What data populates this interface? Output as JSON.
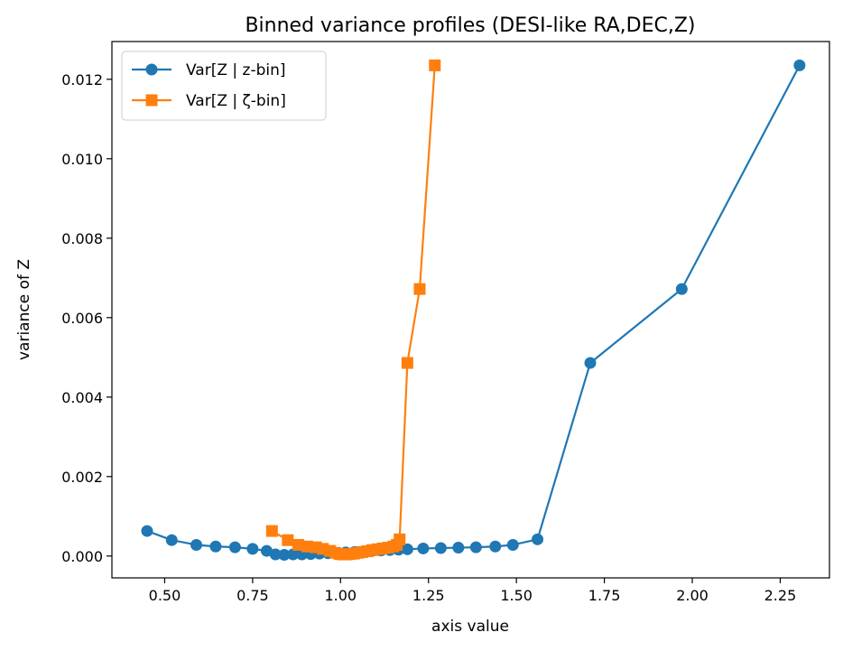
{
  "chart_data": {
    "type": "line",
    "title": "Binned variance profiles (DESI-like RA,DEC,Z)",
    "xlabel": "axis value",
    "ylabel": "variance of Z",
    "xlim": [
      0.35,
      2.39
    ],
    "ylim": [
      -0.00055,
      0.01295
    ],
    "x_ticks": [
      0.5,
      0.75,
      1.0,
      1.25,
      1.5,
      1.75,
      2.0,
      2.25
    ],
    "x_tick_labels": [
      "0.50",
      "0.75",
      "1.00",
      "1.25",
      "1.50",
      "1.75",
      "2.00",
      "2.25"
    ],
    "y_ticks": [
      0.0,
      0.002,
      0.004,
      0.006,
      0.008,
      0.01,
      0.012
    ],
    "y_tick_labels": [
      "0.000",
      "0.002",
      "0.004",
      "0.006",
      "0.008",
      "0.010",
      "0.012"
    ],
    "grid": false,
    "legend_position": "top-left",
    "series": [
      {
        "name": "Var[Z | z-bin]",
        "marker": "circle",
        "color": "#1f77b4",
        "points": [
          [
            0.45,
            0.00063
          ],
          [
            0.52,
            0.0004
          ],
          [
            0.59,
            0.00028
          ],
          [
            0.645,
            0.00024
          ],
          [
            0.7,
            0.00022
          ],
          [
            0.75,
            0.00018
          ],
          [
            0.79,
            0.00013
          ],
          [
            0.815,
            4e-05
          ],
          [
            0.84,
            3e-05
          ],
          [
            0.865,
            4e-05
          ],
          [
            0.89,
            4e-05
          ],
          [
            0.915,
            5e-05
          ],
          [
            0.94,
            6e-05
          ],
          [
            0.965,
            7e-05
          ],
          [
            0.99,
            8e-05
          ],
          [
            1.015,
            9e-05
          ],
          [
            1.04,
            0.0001
          ],
          [
            1.065,
            0.00011
          ],
          [
            1.09,
            0.00013
          ],
          [
            1.115,
            0.00014
          ],
          [
            1.14,
            0.00015
          ],
          [
            1.165,
            0.00016
          ],
          [
            1.19,
            0.00017
          ],
          [
            1.235,
            0.00019
          ],
          [
            1.285,
            0.0002
          ],
          [
            1.335,
            0.00021
          ],
          [
            1.385,
            0.00022
          ],
          [
            1.44,
            0.00024
          ],
          [
            1.49,
            0.00028
          ],
          [
            1.56,
            0.00042
          ],
          [
            1.71,
            0.00486
          ],
          [
            1.97,
            0.00672
          ],
          [
            2.305,
            0.01235
          ]
        ]
      },
      {
        "name": "Var[Z | ζ-bin]",
        "marker": "square",
        "color": "#ff7f0e",
        "points": [
          [
            0.805,
            0.00063
          ],
          [
            0.85,
            0.0004
          ],
          [
            0.88,
            0.00028
          ],
          [
            0.905,
            0.00024
          ],
          [
            0.93,
            0.00022
          ],
          [
            0.95,
            0.00018
          ],
          [
            0.97,
            0.00013
          ],
          [
            0.985,
            8e-05
          ],
          [
            0.997,
            5e-05
          ],
          [
            1.007,
            4e-05
          ],
          [
            1.017,
            4e-05
          ],
          [
            1.027,
            5e-05
          ],
          [
            1.038,
            6e-05
          ],
          [
            1.05,
            8e-05
          ],
          [
            1.062,
            0.0001
          ],
          [
            1.075,
            0.00012
          ],
          [
            1.09,
            0.00015
          ],
          [
            1.105,
            0.00017
          ],
          [
            1.12,
            0.00019
          ],
          [
            1.135,
            0.00021
          ],
          [
            1.15,
            0.00024
          ],
          [
            1.16,
            0.00028
          ],
          [
            1.168,
            0.00042
          ],
          [
            1.19,
            0.00486
          ],
          [
            1.225,
            0.00672
          ],
          [
            1.268,
            0.01235
          ]
        ]
      }
    ]
  }
}
